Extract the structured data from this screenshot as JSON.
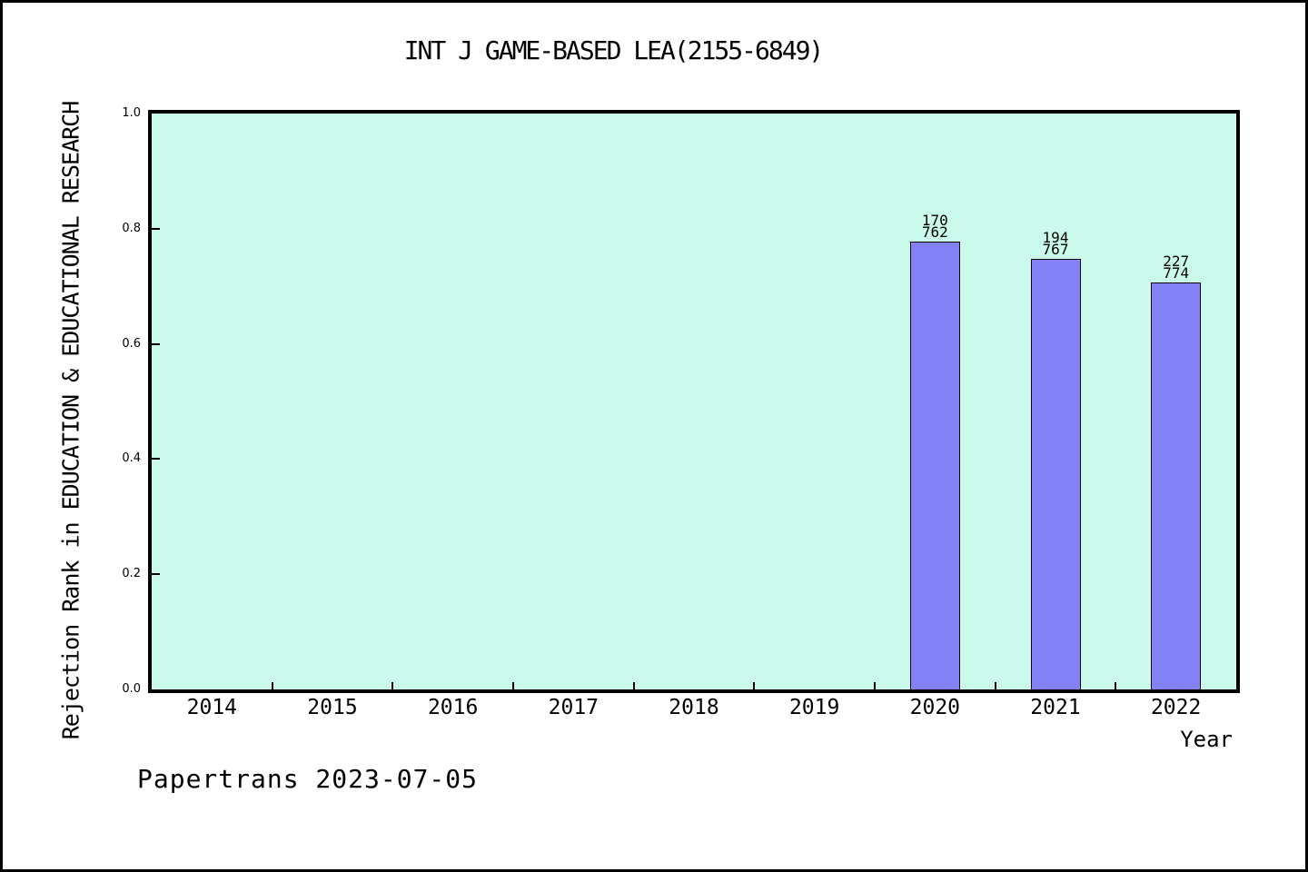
{
  "chart_data": {
    "type": "bar",
    "title": "INT J GAME-BASED LEA(2155-6849)",
    "xlabel": "Year",
    "ylabel": "Rejection Rank in EDUCATION & EDUCATIONAL RESEARCH",
    "footer": "Papertrans 2023-07-05",
    "categories": [
      "2014",
      "2015",
      "2016",
      "2017",
      "2018",
      "2019",
      "2020",
      "2021",
      "2022"
    ],
    "ylim": [
      0.0,
      1.0
    ],
    "yticks": [
      "0.0",
      "0.2",
      "0.4",
      "0.6",
      "0.8",
      "1.0"
    ],
    "grid": false,
    "legend": null,
    "bars": [
      {
        "category": "2020",
        "rank": "170",
        "total": "762",
        "value": 0.777
      },
      {
        "category": "2021",
        "rank": "194",
        "total": "767",
        "value": 0.747
      },
      {
        "category": "2022",
        "rank": "227",
        "total": "774",
        "value": 0.707
      }
    ],
    "colors": {
      "page_background": "#ffffff",
      "frame": "#000000",
      "plot_background": "#cafaec",
      "bar_fill": "#8282f6",
      "bar_border": "#000000",
      "axis": "#000000",
      "text": "#000000"
    }
  }
}
